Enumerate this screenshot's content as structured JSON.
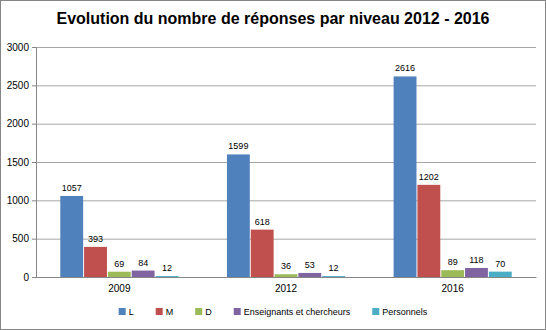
{
  "chart_data": {
    "type": "bar",
    "title": "Evolution du nombre de réponses par niveau 2012 - 2016",
    "categories": [
      "2009",
      "2012",
      "2016"
    ],
    "series": [
      {
        "name": "L",
        "color": "#4f81bd",
        "values": [
          1057,
          1599,
          2616
        ]
      },
      {
        "name": "M",
        "color": "#c0504d",
        "values": [
          393,
          618,
          1202
        ]
      },
      {
        "name": "D",
        "color": "#9bbb59",
        "values": [
          69,
          36,
          89
        ]
      },
      {
        "name": "Enseignants et chercheurs",
        "color": "#8064a2",
        "values": [
          84,
          53,
          118
        ]
      },
      {
        "name": "Personnels",
        "color": "#4bacc6",
        "values": [
          12,
          12,
          70
        ]
      }
    ],
    "ylim": [
      0,
      3000
    ],
    "yticks": [
      0,
      500,
      1000,
      1500,
      2000,
      2500,
      3000
    ],
    "grid": true,
    "legend": "bottom",
    "data_labels": true
  }
}
